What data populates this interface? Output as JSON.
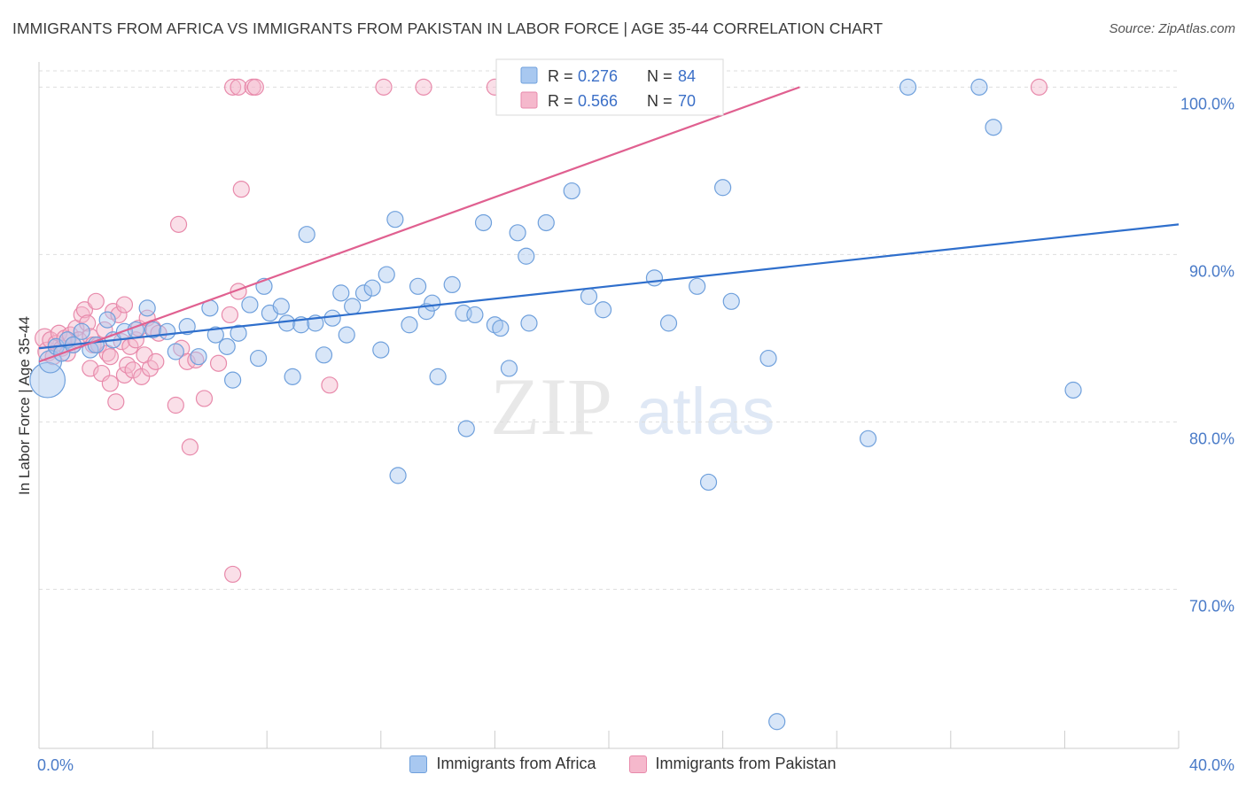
{
  "title": "IMMIGRANTS FROM AFRICA VS IMMIGRANTS FROM PAKISTAN IN LABOR FORCE | AGE 35-44 CORRELATION CHART",
  "source": "Source: ZipAtlas.com",
  "watermark": {
    "zip": "ZIP",
    "atlas": "atlas"
  },
  "colors": {
    "africa_fill": "#a8c8f0",
    "africa_stroke": "#6fa0dc",
    "africa_line": "#2f6fcc",
    "pakistan_fill": "#f5b8cc",
    "pakistan_stroke": "#e88aab",
    "pakistan_line": "#e06090",
    "tick_label": "#4a7bc8",
    "grid": "#dddddd"
  },
  "legend": {
    "r_label": "R =",
    "n_label": "N =",
    "africa": {
      "r": "0.276",
      "n": "84"
    },
    "pakistan": {
      "r": "0.566",
      "n": "70"
    }
  },
  "chart_data": {
    "type": "scatter",
    "title": "IMMIGRANTS FROM AFRICA VS IMMIGRANTS FROM PAKISTAN IN LABOR FORCE | AGE 35-44 CORRELATION CHART",
    "xlabel": "",
    "ylabel": "In Labor Force | Age 35-44",
    "xlim": [
      0,
      40
    ],
    "ylim": [
      60.5,
      101.5
    ],
    "x_tick_labels": [
      {
        "value": 0,
        "label": "0.0%"
      },
      {
        "value": 40,
        "label": "40.0%"
      }
    ],
    "y_tick_labels": [
      {
        "value": 100,
        "label": "100.0%"
      },
      {
        "value": 90,
        "label": "90.0%"
      },
      {
        "value": 80,
        "label": "80.0%"
      },
      {
        "value": 70,
        "label": "70.0%"
      }
    ],
    "grid": "horizontal dashed",
    "legend_position": "top-center",
    "series": [
      {
        "name": "Immigrants from Africa",
        "trend": {
          "x": [
            0,
            40
          ],
          "y": [
            84.4,
            91.8
          ]
        },
        "points": [
          {
            "x": 0.3,
            "y": 82.5,
            "s": 2.2
          },
          {
            "x": 0.4,
            "y": 83.6,
            "s": 1.4
          },
          {
            "x": 0.6,
            "y": 84.5,
            "s": 1
          },
          {
            "x": 0.8,
            "y": 84.1,
            "s": 1
          },
          {
            "x": 1.0,
            "y": 84.9,
            "s": 1
          },
          {
            "x": 1.2,
            "y": 84.6,
            "s": 1
          },
          {
            "x": 1.5,
            "y": 85.4,
            "s": 1
          },
          {
            "x": 1.8,
            "y": 84.3,
            "s": 1
          },
          {
            "x": 2.0,
            "y": 84.6,
            "s": 1
          },
          {
            "x": 2.4,
            "y": 86.1,
            "s": 1
          },
          {
            "x": 2.6,
            "y": 84.9,
            "s": 1
          },
          {
            "x": 3.0,
            "y": 85.4,
            "s": 1
          },
          {
            "x": 3.4,
            "y": 85.5,
            "s": 1
          },
          {
            "x": 3.8,
            "y": 86.8,
            "s": 1
          },
          {
            "x": 4.0,
            "y": 85.5,
            "s": 1
          },
          {
            "x": 4.5,
            "y": 85.4,
            "s": 1
          },
          {
            "x": 4.8,
            "y": 84.2,
            "s": 1
          },
          {
            "x": 5.2,
            "y": 85.7,
            "s": 1
          },
          {
            "x": 5.6,
            "y": 83.9,
            "s": 1
          },
          {
            "x": 6.0,
            "y": 86.8,
            "s": 1
          },
          {
            "x": 6.2,
            "y": 85.2,
            "s": 1
          },
          {
            "x": 6.6,
            "y": 84.5,
            "s": 1
          },
          {
            "x": 6.8,
            "y": 82.5,
            "s": 1
          },
          {
            "x": 7.0,
            "y": 85.3,
            "s": 1
          },
          {
            "x": 7.4,
            "y": 87.0,
            "s": 1
          },
          {
            "x": 7.7,
            "y": 83.8,
            "s": 1
          },
          {
            "x": 7.9,
            "y": 88.1,
            "s": 1
          },
          {
            "x": 8.1,
            "y": 86.5,
            "s": 1
          },
          {
            "x": 8.5,
            "y": 86.9,
            "s": 1
          },
          {
            "x": 8.7,
            "y": 85.9,
            "s": 1
          },
          {
            "x": 8.9,
            "y": 82.7,
            "s": 1
          },
          {
            "x": 9.2,
            "y": 85.8,
            "s": 1
          },
          {
            "x": 9.4,
            "y": 91.2,
            "s": 1
          },
          {
            "x": 9.7,
            "y": 85.9,
            "s": 1
          },
          {
            "x": 10.0,
            "y": 84.0,
            "s": 1
          },
          {
            "x": 10.3,
            "y": 86.2,
            "s": 1
          },
          {
            "x": 10.6,
            "y": 87.7,
            "s": 1
          },
          {
            "x": 10.8,
            "y": 85.2,
            "s": 1
          },
          {
            "x": 11.0,
            "y": 86.9,
            "s": 1
          },
          {
            "x": 11.4,
            "y": 87.7,
            "s": 1
          },
          {
            "x": 11.7,
            "y": 88.0,
            "s": 1
          },
          {
            "x": 12.0,
            "y": 84.3,
            "s": 1
          },
          {
            "x": 12.2,
            "y": 88.8,
            "s": 1
          },
          {
            "x": 12.5,
            "y": 92.1,
            "s": 1
          },
          {
            "x": 12.6,
            "y": 76.8,
            "s": 1
          },
          {
            "x": 13.0,
            "y": 85.8,
            "s": 1
          },
          {
            "x": 13.3,
            "y": 88.1,
            "s": 1
          },
          {
            "x": 13.6,
            "y": 86.6,
            "s": 1
          },
          {
            "x": 13.8,
            "y": 87.1,
            "s": 1
          },
          {
            "x": 14.0,
            "y": 82.7,
            "s": 1
          },
          {
            "x": 14.5,
            "y": 88.2,
            "s": 1
          },
          {
            "x": 14.9,
            "y": 86.5,
            "s": 1
          },
          {
            "x": 15.3,
            "y": 86.4,
            "s": 1
          },
          {
            "x": 15.6,
            "y": 91.9,
            "s": 1
          },
          {
            "x": 15.0,
            "y": 79.6,
            "s": 1
          },
          {
            "x": 16.0,
            "y": 85.8,
            "s": 1
          },
          {
            "x": 16.2,
            "y": 85.6,
            "s": 1
          },
          {
            "x": 16.5,
            "y": 83.2,
            "s": 1
          },
          {
            "x": 16.8,
            "y": 91.3,
            "s": 1
          },
          {
            "x": 17.1,
            "y": 89.9,
            "s": 1
          },
          {
            "x": 17.2,
            "y": 85.9,
            "s": 1
          },
          {
            "x": 17.8,
            "y": 91.9,
            "s": 1
          },
          {
            "x": 18.7,
            "y": 93.8,
            "s": 1
          },
          {
            "x": 19.3,
            "y": 87.5,
            "s": 1
          },
          {
            "x": 19.8,
            "y": 86.7,
            "s": 1
          },
          {
            "x": 20.4,
            "y": 100.0,
            "s": 1
          },
          {
            "x": 21.6,
            "y": 88.6,
            "s": 1
          },
          {
            "x": 22.1,
            "y": 85.9,
            "s": 1
          },
          {
            "x": 23.1,
            "y": 88.1,
            "s": 1
          },
          {
            "x": 23.5,
            "y": 76.4,
            "s": 1
          },
          {
            "x": 24.0,
            "y": 94.0,
            "s": 1
          },
          {
            "x": 24.3,
            "y": 87.2,
            "s": 1
          },
          {
            "x": 25.6,
            "y": 83.8,
            "s": 1
          },
          {
            "x": 25.9,
            "y": 62.1,
            "s": 1
          },
          {
            "x": 29.1,
            "y": 79.0,
            "s": 1
          },
          {
            "x": 30.5,
            "y": 100.0,
            "s": 1
          },
          {
            "x": 33.0,
            "y": 100.0,
            "s": 1
          },
          {
            "x": 33.5,
            "y": 97.6,
            "s": 1
          },
          {
            "x": 36.3,
            "y": 81.9,
            "s": 1
          }
        ]
      },
      {
        "name": "Immigrants from Pakistan",
        "trend": {
          "x": [
            0,
            26.7
          ],
          "y": [
            83.6,
            100.0
          ]
        },
        "points": [
          {
            "x": 0.2,
            "y": 85.0,
            "s": 1.2
          },
          {
            "x": 0.3,
            "y": 84.2,
            "s": 1.2
          },
          {
            "x": 0.4,
            "y": 84.9,
            "s": 1
          },
          {
            "x": 0.5,
            "y": 83.9,
            "s": 1
          },
          {
            "x": 0.6,
            "y": 84.7,
            "s": 1
          },
          {
            "x": 0.7,
            "y": 85.3,
            "s": 1
          },
          {
            "x": 0.8,
            "y": 84.4,
            "s": 1
          },
          {
            "x": 0.9,
            "y": 85.0,
            "s": 1
          },
          {
            "x": 1.0,
            "y": 84.1,
            "s": 1
          },
          {
            "x": 1.1,
            "y": 85.2,
            "s": 1
          },
          {
            "x": 1.2,
            "y": 84.6,
            "s": 1
          },
          {
            "x": 1.3,
            "y": 85.6,
            "s": 1
          },
          {
            "x": 1.4,
            "y": 84.9,
            "s": 1
          },
          {
            "x": 1.5,
            "y": 86.4,
            "s": 1
          },
          {
            "x": 1.6,
            "y": 86.7,
            "s": 1
          },
          {
            "x": 1.7,
            "y": 85.9,
            "s": 1
          },
          {
            "x": 1.8,
            "y": 85.1,
            "s": 1
          },
          {
            "x": 1.8,
            "y": 83.2,
            "s": 1
          },
          {
            "x": 1.9,
            "y": 84.6,
            "s": 1
          },
          {
            "x": 2.0,
            "y": 87.2,
            "s": 1
          },
          {
            "x": 2.1,
            "y": 84.6,
            "s": 1
          },
          {
            "x": 2.2,
            "y": 82.9,
            "s": 1
          },
          {
            "x": 2.3,
            "y": 85.5,
            "s": 1
          },
          {
            "x": 2.4,
            "y": 84.1,
            "s": 1
          },
          {
            "x": 2.5,
            "y": 82.3,
            "s": 1
          },
          {
            "x": 2.5,
            "y": 83.9,
            "s": 1
          },
          {
            "x": 2.6,
            "y": 86.6,
            "s": 1
          },
          {
            "x": 2.7,
            "y": 81.2,
            "s": 1
          },
          {
            "x": 2.8,
            "y": 86.4,
            "s": 1
          },
          {
            "x": 2.9,
            "y": 84.8,
            "s": 1
          },
          {
            "x": 3.0,
            "y": 87.0,
            "s": 1
          },
          {
            "x": 3.0,
            "y": 82.8,
            "s": 1
          },
          {
            "x": 3.1,
            "y": 83.4,
            "s": 1
          },
          {
            "x": 3.2,
            "y": 84.5,
            "s": 1
          },
          {
            "x": 3.3,
            "y": 83.1,
            "s": 1
          },
          {
            "x": 3.4,
            "y": 84.9,
            "s": 1
          },
          {
            "x": 3.5,
            "y": 85.6,
            "s": 1
          },
          {
            "x": 3.6,
            "y": 82.7,
            "s": 1
          },
          {
            "x": 3.7,
            "y": 84.0,
            "s": 1
          },
          {
            "x": 3.8,
            "y": 86.2,
            "s": 1
          },
          {
            "x": 3.9,
            "y": 83.2,
            "s": 1
          },
          {
            "x": 4.0,
            "y": 85.6,
            "s": 1
          },
          {
            "x": 4.1,
            "y": 83.6,
            "s": 1
          },
          {
            "x": 4.2,
            "y": 85.3,
            "s": 1
          },
          {
            "x": 4.8,
            "y": 81.0,
            "s": 1
          },
          {
            "x": 4.9,
            "y": 91.8,
            "s": 1
          },
          {
            "x": 5.0,
            "y": 84.4,
            "s": 1
          },
          {
            "x": 5.2,
            "y": 83.6,
            "s": 1
          },
          {
            "x": 5.3,
            "y": 78.5,
            "s": 1
          },
          {
            "x": 5.5,
            "y": 83.7,
            "s": 1
          },
          {
            "x": 5.8,
            "y": 81.4,
            "s": 1
          },
          {
            "x": 6.3,
            "y": 83.5,
            "s": 1
          },
          {
            "x": 6.7,
            "y": 86.4,
            "s": 1
          },
          {
            "x": 6.8,
            "y": 70.9,
            "s": 1
          },
          {
            "x": 6.8,
            "y": 100.0,
            "s": 1
          },
          {
            "x": 7.0,
            "y": 100.0,
            "s": 1
          },
          {
            "x": 7.0,
            "y": 87.8,
            "s": 1
          },
          {
            "x": 7.1,
            "y": 93.9,
            "s": 1
          },
          {
            "x": 7.5,
            "y": 100.0,
            "s": 1
          },
          {
            "x": 7.6,
            "y": 100.0,
            "s": 1
          },
          {
            "x": 10.2,
            "y": 82.2,
            "s": 1
          },
          {
            "x": 12.1,
            "y": 100.0,
            "s": 1
          },
          {
            "x": 13.5,
            "y": 100.0,
            "s": 1
          },
          {
            "x": 16.0,
            "y": 100.0,
            "s": 1
          },
          {
            "x": 35.1,
            "y": 100.0,
            "s": 1
          }
        ]
      }
    ]
  }
}
